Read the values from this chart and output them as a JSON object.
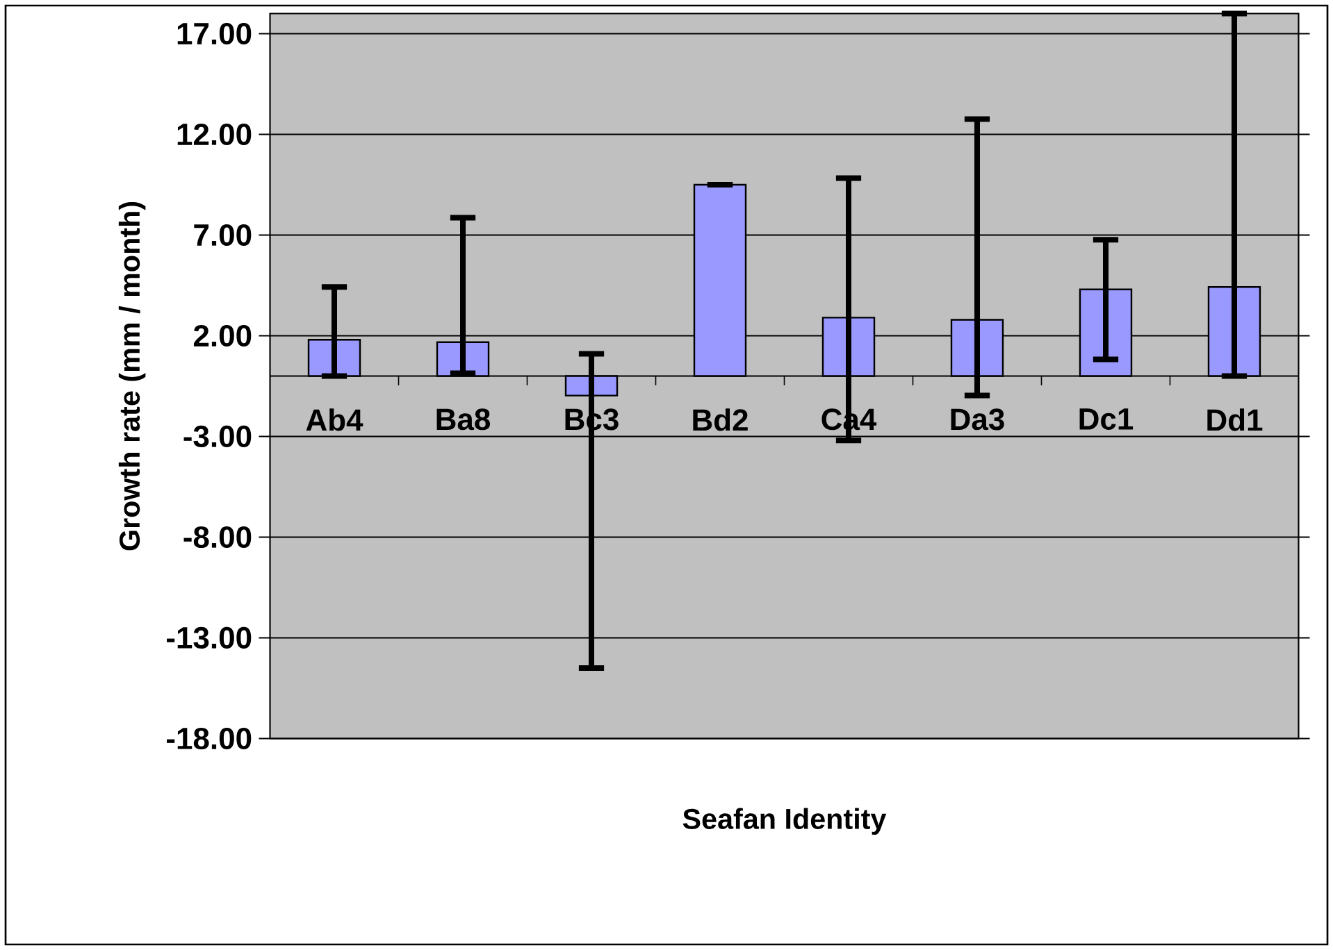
{
  "chart_data": {
    "type": "bar",
    "xlabel": "Seafan Identity",
    "ylabel": "Growth rate (mm / month)",
    "categories": [
      "Ab4",
      "Ba8",
      "Bc3",
      "Bd2",
      "Ca4",
      "Da3",
      "Dc1",
      "Dd1"
    ],
    "values": [
      1.8,
      1.68,
      -0.97,
      9.5,
      2.9,
      2.79,
      4.3,
      4.42
    ],
    "errors": [
      [
        0,
        4.42
      ],
      [
        0.14,
        7.86
      ],
      [
        -14.5,
        1.1
      ],
      [
        9.5,
        9.5
      ],
      [
        -3.2,
        9.83
      ],
      [
        -0.97,
        12.76
      ],
      [
        0.83,
        6.77
      ],
      [
        0,
        18.0
      ]
    ],
    "color": "#9999ff",
    "ylim": [
      -18,
      18
    ],
    "yticks": [
      {
        "value": -18,
        "label": "-18.00"
      },
      {
        "value": -13,
        "label": "-13.00"
      },
      {
        "value": -8,
        "label": "-8.00"
      },
      {
        "value": -3,
        "label": "-3.00"
      },
      {
        "value": 2,
        "label": "2.00"
      },
      {
        "value": 7,
        "label": "7.00"
      },
      {
        "value": 12,
        "label": "12.00"
      },
      {
        "value": 17,
        "label": "17.00"
      }
    ],
    "grid": "y"
  }
}
